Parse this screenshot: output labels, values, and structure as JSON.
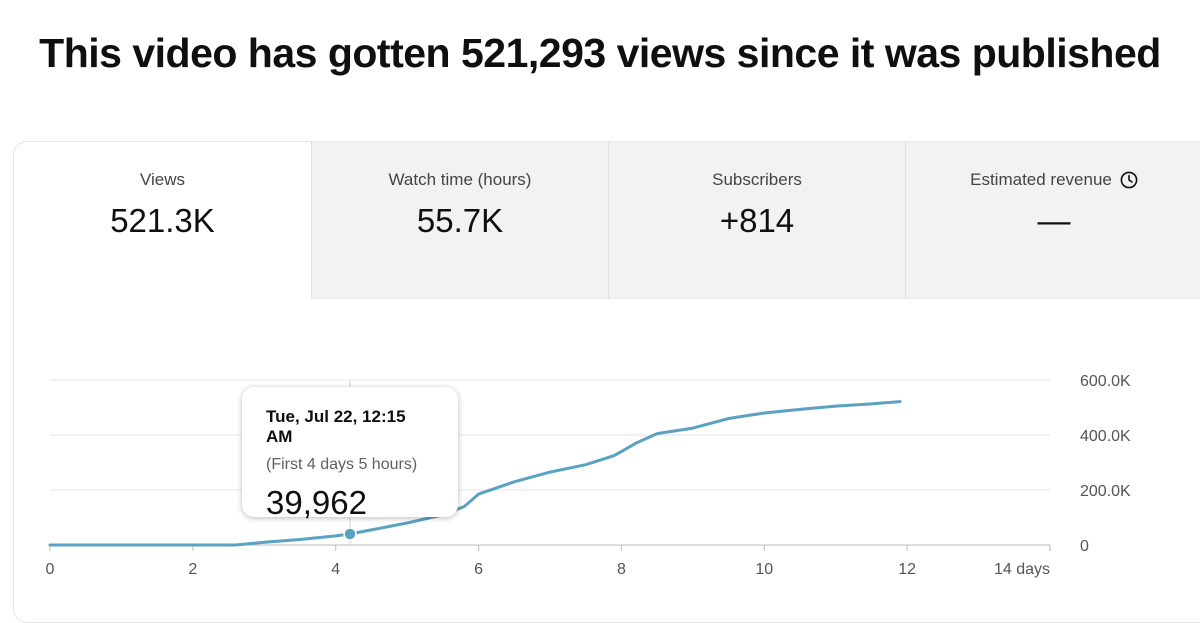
{
  "headline": "This video has gotten 521,293 views since it was published",
  "metrics": [
    {
      "label": "Views",
      "value": "521.3K",
      "active": true
    },
    {
      "label": "Watch time (hours)",
      "value": "55.7K",
      "active": false
    },
    {
      "label": "Subscribers",
      "value": "+814",
      "active": false
    },
    {
      "label": "Estimated revenue",
      "value": "—",
      "active": false,
      "icon": "clock-icon"
    }
  ],
  "tooltip": {
    "date": "Tue, Jul 22, 12:15 AM",
    "subtitle": "(First 4 days 5 hours)",
    "value": "39,962"
  },
  "chart_data": {
    "type": "line",
    "title": "",
    "xlabel": "",
    "ylabel": "",
    "xlim": [
      0,
      14
    ],
    "ylim": [
      0,
      600000
    ],
    "x_ticks": [
      0,
      2,
      4,
      6,
      8,
      10,
      12,
      14
    ],
    "x_tick_labels": [
      "0",
      "2",
      "4",
      "6",
      "8",
      "10",
      "12",
      "14 days"
    ],
    "y_ticks": [
      0,
      200000,
      400000,
      600000
    ],
    "y_tick_labels": [
      "0",
      "200.0K",
      "400.0K",
      "600.0K"
    ],
    "grid": true,
    "line_color": "#5aa1c2",
    "series": [
      {
        "x": [
          0,
          1,
          2,
          2.6,
          3,
          3.5,
          4,
          4.2,
          4.5,
          5,
          5.5,
          5.8,
          6,
          6.5,
          7,
          7.5,
          7.9,
          8.2,
          8.5,
          9,
          9.5,
          10,
          10.5,
          11,
          11.5,
          11.9
        ],
        "y": [
          0,
          0,
          0,
          0,
          10000,
          20000,
          33000,
          40000,
          55000,
          80000,
          110000,
          140000,
          185000,
          230000,
          265000,
          292000,
          325000,
          370000,
          405000,
          425000,
          460000,
          480000,
          493000,
          505000,
          513000,
          521293
        ]
      }
    ],
    "highlight_point": {
      "x": 4.2,
      "y": 39962
    }
  }
}
